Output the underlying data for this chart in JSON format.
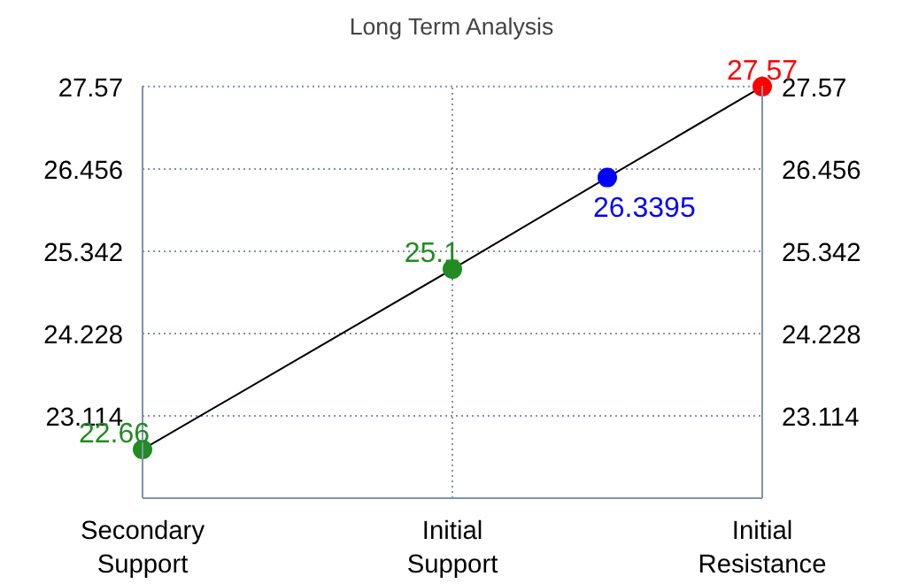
{
  "chart_data": {
    "type": "line",
    "title": "Long Term Analysis",
    "categories": [
      "Secondary\nSupport",
      null,
      "Initial\nSupport",
      null,
      "Initial\nResistance"
    ],
    "ylim": [
      22,
      27.57
    ],
    "yticks": [
      23.114,
      24.228,
      25.342,
      26.456,
      27.57
    ],
    "y2lim": [
      22,
      27.57
    ],
    "y2ticks": [
      23.114,
      24.228,
      25.342,
      26.456,
      27.57
    ],
    "grid": true,
    "series": [
      {
        "color": "#000000",
        "marker": "none",
        "values": [
          22.66,
          null,
          25.1,
          26.3395,
          27.57
        ]
      },
      {
        "type": "scatter",
        "marker": "circle",
        "colors": [
          "#228b22",
          null,
          "#228b22",
          "#0000ff",
          "#ff0000"
        ],
        "values": [
          22.66,
          null,
          25.1,
          26.3395,
          27.57
        ],
        "value_labels": [
          "22.66",
          null,
          "25.1",
          "26.3395",
          "27.57"
        ]
      }
    ]
  }
}
